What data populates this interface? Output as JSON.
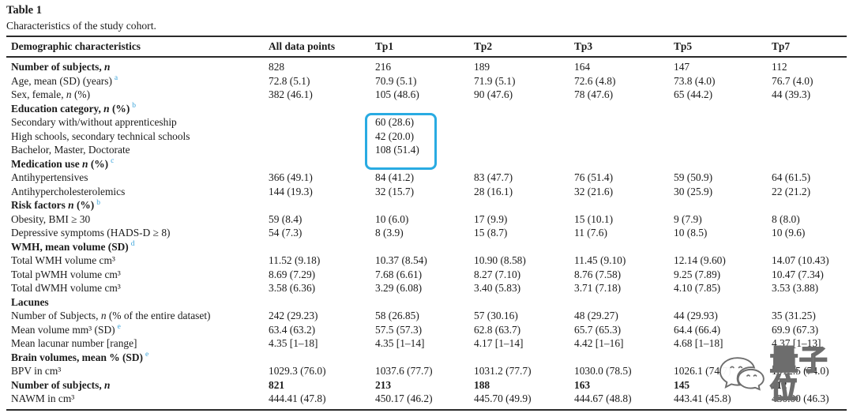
{
  "table_label": "Table 1",
  "caption": "Characteristics of the study cohort.",
  "columns": [
    "Demographic characteristics",
    "All data points",
    "Tp1",
    "Tp2",
    "Tp3",
    "Tp5",
    "Tp7"
  ],
  "rows": [
    {
      "label": "Number of subjects, n",
      "bold": true,
      "cells": [
        "828",
        "216",
        "189",
        "164",
        "147",
        "112"
      ]
    },
    {
      "label": "Age, mean (SD) (years)",
      "sup": "a",
      "cells": [
        "72.8 (5.1)",
        "70.9 (5.1)",
        "71.9 (5.1)",
        "72.6 (4.8)",
        "73.8 (4.0)",
        "76.7 (4.0)"
      ]
    },
    {
      "label": "Sex, female, n (%)",
      "cells": [
        "382 (46.1)",
        "105 (48.6)",
        "90 (47.6)",
        "78 (47.6)",
        "65 (44.2)",
        "44 (39.3)"
      ]
    },
    {
      "label": "Education category, n (%)",
      "sup": "b",
      "bold": true,
      "cells": [
        "",
        "",
        "",
        "",
        "",
        ""
      ]
    },
    {
      "label": "Secondary with/without apprenticeship",
      "cells": [
        "",
        "60 (28.6)",
        "",
        "",
        "",
        ""
      ]
    },
    {
      "label": "High schools, secondary technical schools",
      "cells": [
        "",
        "42 (20.0)",
        "",
        "",
        "",
        ""
      ]
    },
    {
      "label": "Bachelor, Master, Doctorate",
      "cells": [
        "",
        "108 (51.4)",
        "",
        "",
        "",
        ""
      ]
    },
    {
      "label": "Medication use n (%)",
      "sup": "c",
      "bold": true,
      "cells": [
        "",
        "",
        "",
        "",
        "",
        ""
      ]
    },
    {
      "label": "Antihypertensives",
      "cells": [
        "366 (49.1)",
        "84 (41.2)",
        "83 (47.7)",
        "76 (51.4)",
        "59 (50.9)",
        "64 (61.5)"
      ]
    },
    {
      "label": "Antihypercholesterolemics",
      "cells": [
        "144 (19.3)",
        "32 (15.7)",
        "28 (16.1)",
        "32 (21.6)",
        "30 (25.9)",
        "22 (21.2)"
      ]
    },
    {
      "label": "Risk factors n (%)",
      "sup": "b",
      "bold": true,
      "cells": [
        "",
        "",
        "",
        "",
        "",
        ""
      ]
    },
    {
      "label": "Obesity, BMI ≥ 30",
      "cells": [
        "59 (8.4)",
        "10 (6.0)",
        "17 (9.9)",
        "15 (10.1)",
        "9 (7.9)",
        "8 (8.0)"
      ]
    },
    {
      "label": "Depressive symptoms (HADS-D ≥ 8)",
      "cells": [
        "54 (7.3)",
        "8 (3.9)",
        "15 (8.7)",
        "11 (7.6)",
        "10 (8.5)",
        "10 (9.6)"
      ]
    },
    {
      "label": "WMH, mean volume (SD)",
      "sup": "d",
      "bold": true,
      "cells": [
        "",
        "",
        "",
        "",
        "",
        ""
      ]
    },
    {
      "label": "Total WMH volume cm³",
      "cells": [
        "11.52 (9.18)",
        "10.37 (8.54)",
        "10.90 (8.58)",
        "11.45 (9.10)",
        "12.14 (9.60)",
        "14.07 (10.43)"
      ]
    },
    {
      "label": "Total pWMH volume cm³",
      "cells": [
        "8.69 (7.29)",
        "7.68 (6.61)",
        "8.27 (7.10)",
        "8.76 (7.58)",
        "9.25 (7.89)",
        "10.47 (7.34)"
      ]
    },
    {
      "label": "Total dWMH volume cm³",
      "cells": [
        "3.58 (6.36)",
        "3.29 (6.08)",
        "3.40 (5.83)",
        "3.71 (7.18)",
        "4.10 (7.85)",
        "3.53 (3.88)"
      ]
    },
    {
      "label": "Lacunes",
      "bold": true,
      "cells": [
        "",
        "",
        "",
        "",
        "",
        ""
      ]
    },
    {
      "label": "Number of Subjects, n (% of the entire dataset)",
      "cells": [
        "242 (29.23)",
        "58 (26.85)",
        "57 (30.16)",
        "48 (29.27)",
        "44 (29.93)",
        "35 (31.25)"
      ]
    },
    {
      "label": "Mean volume mm³ (SD)",
      "sup": "e",
      "cells": [
        "63.4 (63.2)",
        "57.5 (57.3)",
        "62.8 (63.7)",
        "65.7 (65.3)",
        "64.4 (66.4)",
        "69.9 (67.3)"
      ]
    },
    {
      "label": "Mean lacunar number [range]",
      "cells": [
        "4.35 [1–18]",
        "4.35 [1–14]",
        "4.17 [1–14]",
        "4.42 [1–16]",
        "4.68 [1–18]",
        "4.37 [1–13]"
      ]
    },
    {
      "label": "Brain volumes, mean % (SD)",
      "sup": "e",
      "bold": true,
      "cells": [
        "",
        "",
        "",
        "",
        "",
        ""
      ]
    },
    {
      "label": "BPV in cm³",
      "cells": [
        "1029.3 (76.0)",
        "1037.6 (77.7)",
        "1031.2 (77.7)",
        "1030.0 (78.5)",
        "1026.1 (74.7)",
        "1012.5 (74.0)"
      ]
    },
    {
      "label": "Number of subjects, n",
      "bold": true,
      "bold_cells": true,
      "cells": [
        "821",
        "213",
        "188",
        "163",
        "145",
        "112"
      ]
    },
    {
      "label": "NAWM in cm³",
      "cells": [
        "444.41 (47.8)",
        "450.17 (46.2)",
        "445.70 (49.9)",
        "444.67 (48.8)",
        "443.41 (45.8)",
        "430.00 (46.3)"
      ]
    }
  ],
  "highlight": {
    "color": "#29abe2",
    "column": "Tp1",
    "highlighted_values": [
      "60 (28.6)",
      "42 (20.0)",
      "108 (51.4)"
    ]
  },
  "watermark": {
    "icon": "wechat-icon",
    "text": "量子位"
  }
}
